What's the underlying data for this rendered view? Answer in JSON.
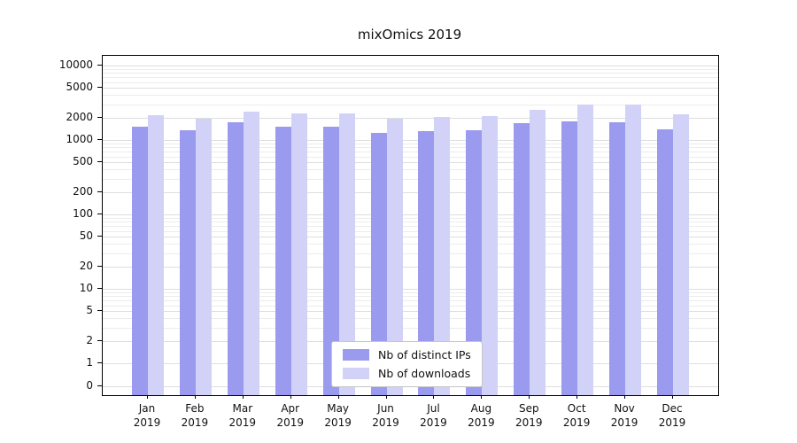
{
  "chart_data": {
    "type": "bar",
    "title": "mixOmics 2019",
    "yscale": "symlog",
    "grid": true,
    "legend_position": "lower center",
    "year_label": "2019",
    "categories": [
      "Jan",
      "Feb",
      "Mar",
      "Apr",
      "May",
      "Jun",
      "Jul",
      "Aug",
      "Sep",
      "Oct",
      "Nov",
      "Dec"
    ],
    "yticks": [
      0,
      1,
      2,
      5,
      10,
      20,
      50,
      100,
      200,
      500,
      1000,
      2000,
      5000,
      10000
    ],
    "ylim": [
      0,
      13000
    ],
    "series": [
      {
        "name": "Nb of distinct IPs",
        "color": "#9a9aee",
        "values": [
          1500,
          1350,
          1750,
          1500,
          1500,
          1250,
          1300,
          1350,
          1700,
          1800,
          1750,
          1400
        ]
      },
      {
        "name": "Nb of downloads",
        "color": "#d2d2f8",
        "values": [
          2150,
          1950,
          2400,
          2300,
          2250,
          1950,
          2050,
          2100,
          2550,
          3000,
          3000,
          2200
        ]
      }
    ]
  }
}
